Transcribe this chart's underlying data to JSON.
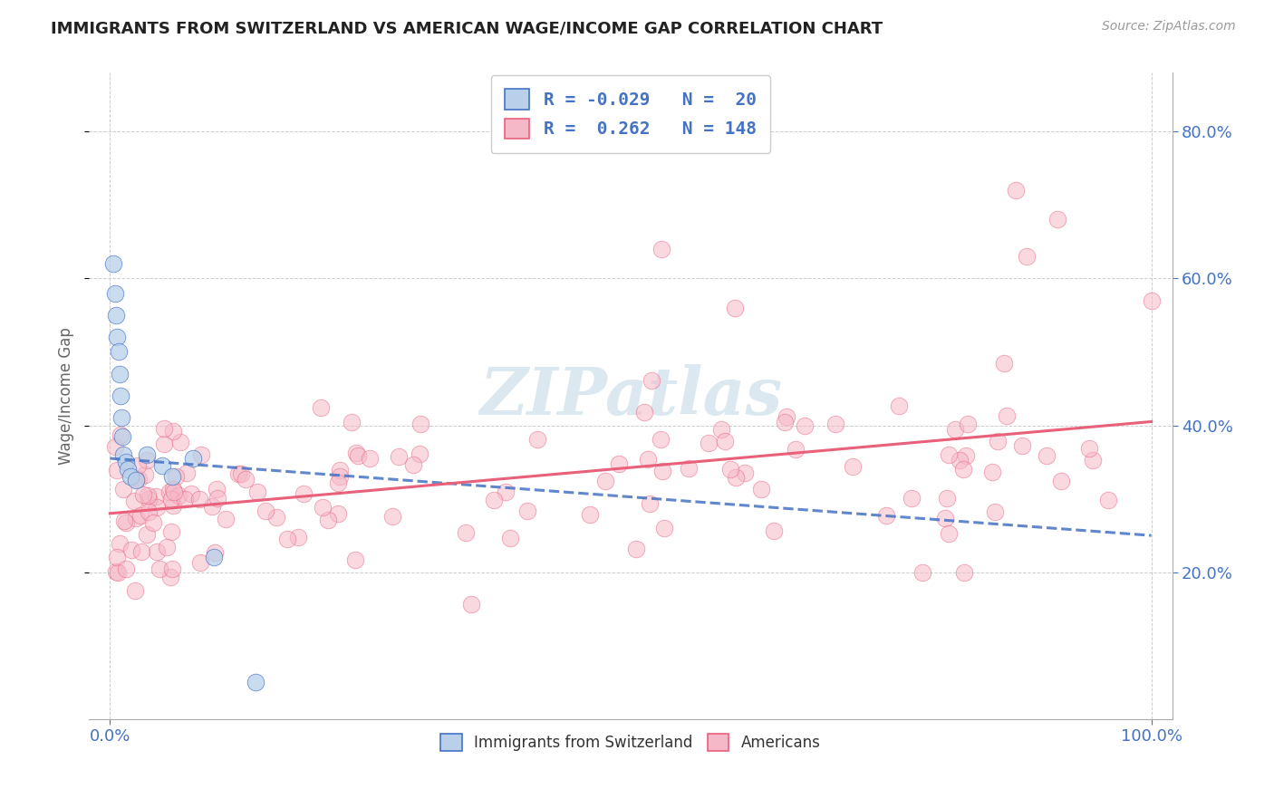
{
  "title": "IMMIGRANTS FROM SWITZERLAND VS AMERICAN WAGE/INCOME GAP CORRELATION CHART",
  "source": "Source: ZipAtlas.com",
  "ylabel": "Wage/Income Gap",
  "legend_labels": [
    "Immigrants from Switzerland",
    "Americans"
  ],
  "r_swiss": -0.029,
  "n_swiss": 20,
  "r_american": 0.262,
  "n_american": 148,
  "swiss_color": "#b8d0ea",
  "american_color": "#f5b8c8",
  "swiss_line_color": "#4472c4",
  "american_line_color": "#e8607a",
  "background_color": "#ffffff",
  "grid_color": "#c8c8c8",
  "axis_color": "#4472c4",
  "title_color": "#222222",
  "ylabel_color": "#666666",
  "watermark_color": "#dce8f0",
  "yticks": [
    20,
    40,
    60,
    80
  ],
  "ytick_labels": [
    "20.0%",
    "40.0%",
    "60.0%",
    "80.0%"
  ],
  "xlim": [
    -2,
    102
  ],
  "ylim": [
    0,
    88
  ],
  "swiss_x": [
    0.3,
    0.5,
    0.6,
    0.7,
    0.8,
    0.9,
    1.0,
    1.1,
    1.2,
    1.3,
    1.5,
    1.7,
    2.0,
    2.5,
    3.5,
    5.0,
    6.0,
    8.0,
    10.0,
    14.0
  ],
  "swiss_y": [
    62.0,
    58.0,
    55.0,
    52.0,
    50.0,
    47.0,
    44.0,
    41.0,
    38.5,
    36.0,
    35.0,
    34.0,
    33.0,
    32.5,
    36.0,
    34.5,
    33.0,
    35.5,
    22.0,
    5.0
  ],
  "blue_line_x0": 0,
  "blue_line_y0": 35.5,
  "blue_line_x1": 100,
  "blue_line_y1": 25.0,
  "pink_line_x0": 0,
  "pink_line_y0": 28.0,
  "pink_line_x1": 100,
  "pink_line_y1": 40.5
}
